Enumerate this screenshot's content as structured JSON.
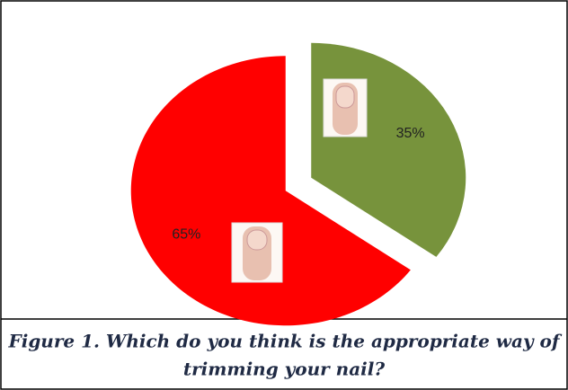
{
  "chart_data": {
    "type": "pie",
    "categories": [
      null,
      null
    ],
    "values": [
      35,
      65
    ],
    "value_labels": [
      "35%",
      "65%"
    ],
    "colors": [
      "#77933c",
      "#ff0000"
    ],
    "caption": [
      "Figure 1. Which do you think is the appropriate way of",
      "trimming your nail?"
    ]
  }
}
